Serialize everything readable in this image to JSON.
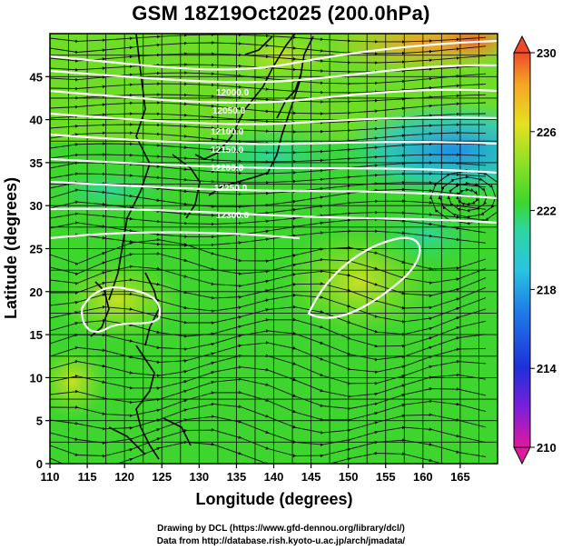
{
  "title": "GSM 18Z19Oct2025 (200.0hPa)",
  "credits": {
    "line1": "Drawing by DCL (https://www.gfd-dennou.org/library/dcl/)",
    "line2": "Data from http://database.rish.kyoto-u.ac.jp/arch/jmadata/"
  },
  "chart_data": {
    "type": "heatmap",
    "xlabel": "Longitude (degrees)",
    "ylabel": "Latitude  (degrees)",
    "xlim": [
      110,
      170
    ],
    "ylim": [
      0,
      50
    ],
    "x_ticks": [
      "110",
      "115",
      "120",
      "125",
      "130",
      "135",
      "140",
      "145",
      "150",
      "155",
      "160",
      "165"
    ],
    "y_ticks": [
      "0",
      "5",
      "10",
      "15",
      "20",
      "25",
      "30",
      "35",
      "40",
      "45"
    ],
    "colorbar": {
      "range": [
        210,
        230
      ],
      "tick_labels": [
        "230",
        "226",
        "222",
        "218",
        "214",
        "210"
      ],
      "colors": [
        "#e0189e",
        "#7d1fd9",
        "#1f2fd9",
        "#1f7fe8",
        "#29c4e0",
        "#2ed6a0",
        "#3bd62e",
        "#8ee024",
        "#e6e020",
        "#f5a623",
        "#ee4a2a"
      ]
    },
    "grid": true,
    "features": [
      "temperature field",
      "wind streamlines",
      "geopotential height contours (white)",
      "coastlines"
    ]
  }
}
